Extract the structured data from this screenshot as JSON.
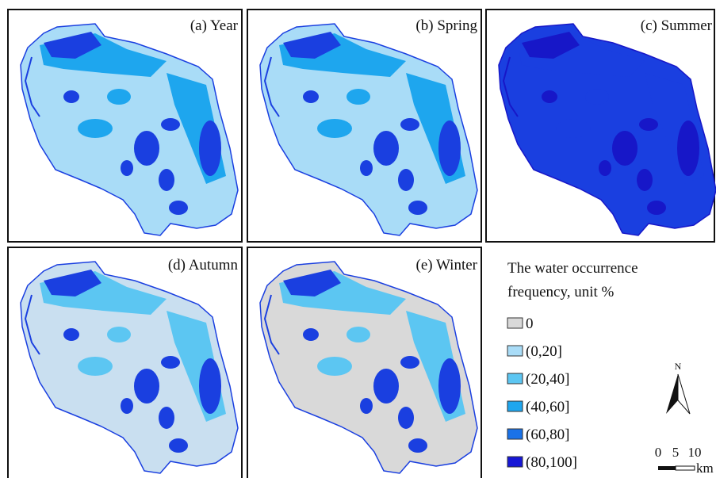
{
  "panels": [
    {
      "title": "(a) Year"
    },
    {
      "title": "(b) Spring"
    },
    {
      "title": "(c) Summer"
    },
    {
      "title": "(d) Autumn"
    },
    {
      "title": "(e) Winter"
    }
  ],
  "legend": {
    "title_line1": "The water occurrence",
    "title_line2": "frequency, unit %",
    "items": [
      {
        "label": "0",
        "color": "#d9d9d9"
      },
      {
        "label": "(0,20]",
        "color": "#a9dcf7"
      },
      {
        "label": "(20,40]",
        "color": "#5cc6f2"
      },
      {
        "label": "(40,60]",
        "color": "#1ea6ee"
      },
      {
        "label": "(60,80]",
        "color": "#1a72e8"
      },
      {
        "label": "(80,100]",
        "color": "#1717d6"
      }
    ]
  },
  "north": "N",
  "scale": {
    "labels": [
      "0",
      "5",
      "10"
    ],
    "unit": "km"
  }
}
